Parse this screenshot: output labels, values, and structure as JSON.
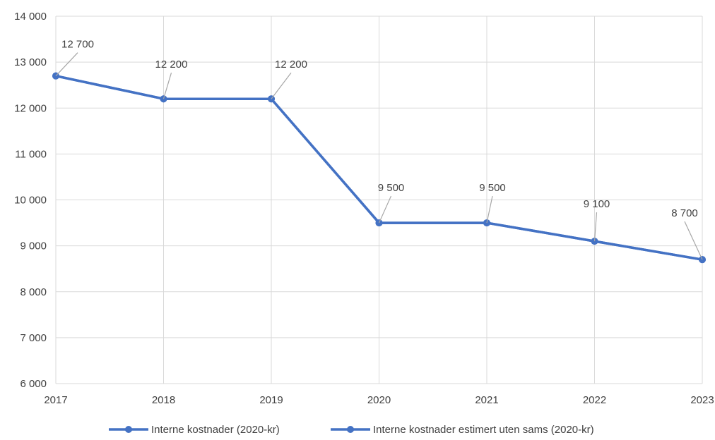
{
  "chart_data": {
    "type": "line",
    "title": "",
    "xlabel": "",
    "ylabel": "",
    "categories": [
      "2017",
      "2018",
      "2019",
      "2020",
      "2021",
      "2022",
      "2023"
    ],
    "ylim": [
      6000,
      14000
    ],
    "yticks": [
      6000,
      7000,
      8000,
      9000,
      10000,
      11000,
      12000,
      13000,
      14000
    ],
    "ytick_labels": [
      "6 000",
      "7 000",
      "8 000",
      "9 000",
      "10 000",
      "11 000",
      "12 000",
      "13 000",
      "14 000"
    ],
    "grid": true,
    "legend_position": "bottom",
    "series": [
      {
        "name": "Interne kostnader (2020-kr)",
        "color": "#4472c4",
        "values": [
          12700,
          12200,
          12200,
          9500,
          9500,
          9100,
          8700
        ],
        "data_labels": [
          "12 700",
          "12 200",
          "12 200",
          "9 500",
          "9 500",
          "9 100",
          "8 700"
        ]
      },
      {
        "name": "Interne kostnader estimert uten sams (2020-kr)",
        "color": "#4472c4",
        "values": [
          12700,
          12200,
          12200,
          9500,
          9500,
          9100,
          8700
        ]
      }
    ]
  }
}
